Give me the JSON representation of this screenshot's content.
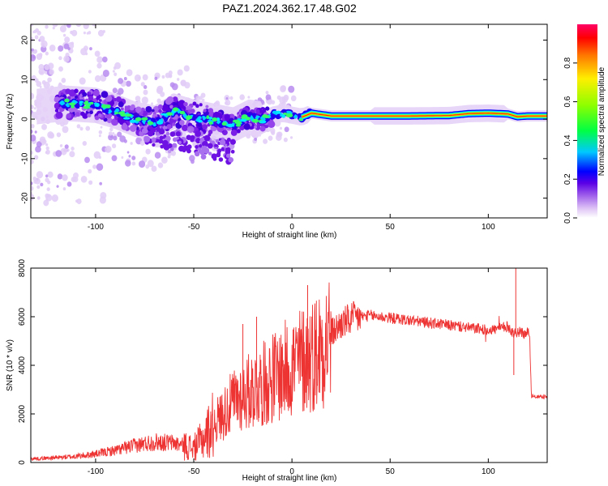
{
  "title": "PAZ1.2024.362.17.48.G02",
  "chart_data": [
    {
      "type": "heatmap",
      "xlabel": "Height of straight line (km)",
      "ylabel": "Frequency (Hz)",
      "xlim": [
        -133,
        130
      ],
      "ylim": [
        -25,
        24
      ],
      "xticks": [
        -100,
        -50,
        0,
        50,
        100
      ],
      "yticks": [
        -20,
        -10,
        0,
        10,
        20
      ],
      "colorbar": {
        "label": "Normalized spectral amplitude",
        "range": [
          0.0,
          1.0
        ],
        "ticks": [
          "0.0",
          "0.2",
          "0.4",
          "0.6",
          "0.8"
        ],
        "colormap": [
          "#ffffff",
          "#e3c6f5",
          "#a05ee8",
          "#6a00e0",
          "#0000ff",
          "#00d8ff",
          "#00ff66",
          "#a6ff00",
          "#ffff00",
          "#ff8800",
          "#ff0000",
          "#ff0066"
        ]
      },
      "ridge": {
        "x": [
          -133,
          -115,
          -100,
          -90,
          -80,
          -70,
          -60,
          -50,
          -40,
          -30,
          -22,
          -15,
          -10,
          -5,
          0,
          5,
          10,
          20,
          40,
          60,
          80,
          90,
          100,
          110,
          115,
          120,
          130
        ],
        "y": [
          3,
          4,
          3.5,
          2,
          0,
          -1,
          2,
          0.5,
          -0.5,
          -1.5,
          0.5,
          0,
          1,
          1.5,
          1,
          0.5,
          1.5,
          0.8,
          0.8,
          0.8,
          0.9,
          1.4,
          1.5,
          1.3,
          0.6,
          0.8,
          0.8
        ]
      }
    },
    {
      "type": "line",
      "xlabel": "Height of straight line (km)",
      "ylabel": "SNR (10 * v/v)",
      "xlim": [
        -133,
        130
      ],
      "ylim": [
        0,
        8000
      ],
      "xticks": [
        -100,
        -50,
        0,
        50,
        100
      ],
      "yticks": [
        0,
        2000,
        4000,
        6000,
        8000
      ],
      "color": "#ee3333",
      "series": [
        {
          "x": [
            -133,
            -120,
            -110,
            -100,
            -90,
            -80,
            -70,
            -60,
            -55,
            -50,
            -45,
            -40,
            -35,
            -30,
            -25,
            -20,
            -15,
            -10,
            -5,
            0,
            5,
            10,
            15,
            20,
            25,
            30,
            35,
            40,
            45,
            50,
            60,
            70,
            80,
            90,
            100,
            105,
            110,
            113,
            115,
            118,
            120,
            121,
            122,
            125,
            130
          ],
          "values": [
            150,
            200,
            250,
            350,
            500,
            700,
            850,
            800,
            700,
            600,
            1000,
            1600,
            2000,
            2500,
            2800,
            3000,
            3200,
            3500,
            3700,
            4000,
            4200,
            4400,
            4800,
            5300,
            5700,
            5900,
            6000,
            6050,
            6000,
            5950,
            5850,
            5750,
            5650,
            5550,
            5450,
            5500,
            5600,
            5300,
            5400,
            5300,
            5350,
            5300,
            2750,
            2700,
            2700
          ]
        }
      ],
      "annotations": {
        "spikes": [
          {
            "x": 8,
            "y": 7300
          },
          {
            "x": 114,
            "y": 8000
          },
          {
            "x": 113,
            "y": 3600
          },
          {
            "x": -25,
            "y": 5700
          },
          {
            "x": -18,
            "y": 6000
          }
        ]
      }
    }
  ]
}
